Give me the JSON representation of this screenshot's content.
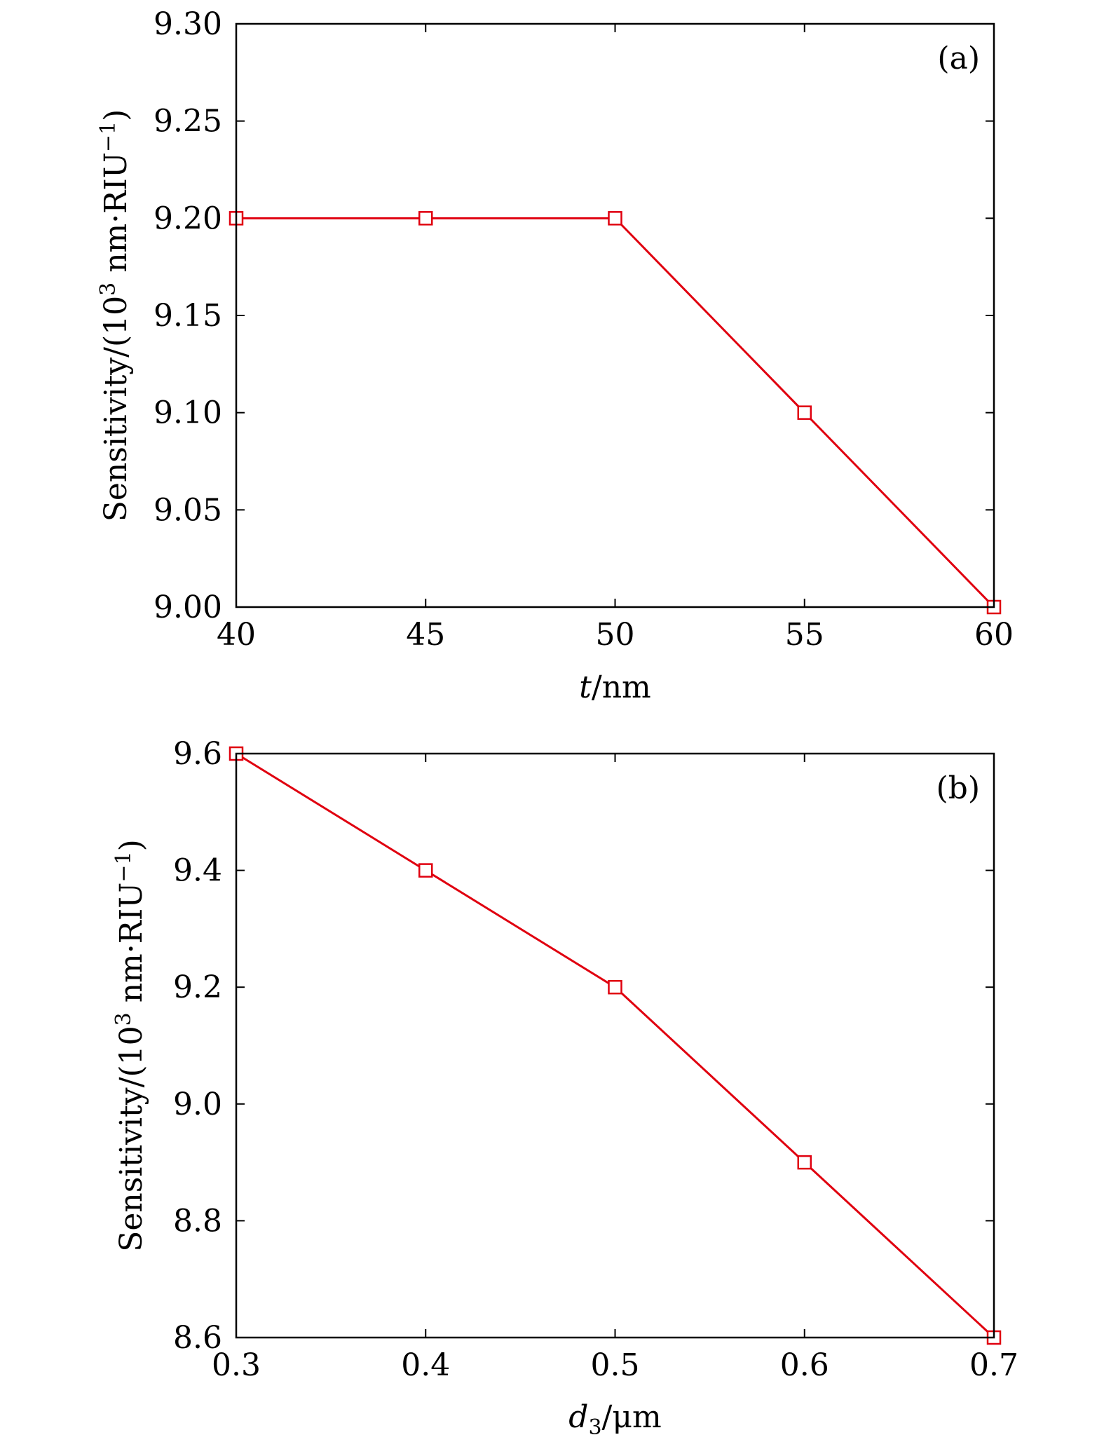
{
  "colors": {
    "series": "#e0000f",
    "axis": "#000000"
  },
  "chart_data": [
    {
      "type": "line",
      "panel_label": "(a)",
      "xlabel": {
        "italic": "t",
        "rest": "/nm"
      },
      "ylabel": {
        "main": "Sensitivity/(10",
        "sup": "3",
        "mid": " nm·RIU",
        "sup2": "−1",
        "end": ")"
      },
      "xlim": [
        40,
        60
      ],
      "ylim": [
        9.0,
        9.3
      ],
      "xticks": [
        40,
        45,
        50,
        55,
        60
      ],
      "xtick_labels": [
        "40",
        "45",
        "50",
        "55",
        "60"
      ],
      "yticks": [
        9.0,
        9.05,
        9.1,
        9.15,
        9.2,
        9.25,
        9.3
      ],
      "ytick_labels": [
        "9.00",
        "9.05",
        "9.10",
        "9.15",
        "9.20",
        "9.25",
        "9.30"
      ],
      "grid": false,
      "marker": "open-square",
      "series": [
        {
          "x": [
            40,
            45,
            50,
            55,
            60
          ],
          "y": [
            9.2,
            9.2,
            9.2,
            9.1,
            9.0
          ]
        }
      ]
    },
    {
      "type": "line",
      "panel_label": "(b)",
      "xlabel": {
        "italic": "d",
        "sub": "3",
        "rest": "/μm"
      },
      "ylabel": {
        "main": "Sensitivity/(10",
        "sup": "3",
        "mid": " nm·RIU",
        "sup2": "−1",
        "end": ")"
      },
      "xlim": [
        0.3,
        0.7
      ],
      "ylim": [
        8.6,
        9.6
      ],
      "xticks": [
        0.3,
        0.4,
        0.5,
        0.6,
        0.7
      ],
      "xtick_labels": [
        "0.3",
        "0.4",
        "0.5",
        "0.6",
        "0.7"
      ],
      "yticks": [
        8.6,
        8.8,
        9.0,
        9.2,
        9.4,
        9.6
      ],
      "ytick_labels": [
        "8.6",
        "8.8",
        "9.0",
        "9.2",
        "9.4",
        "9.6"
      ],
      "grid": false,
      "marker": "open-square",
      "series": [
        {
          "x": [
            0.3,
            0.4,
            0.5,
            0.6,
            0.7
          ],
          "y": [
            9.6,
            9.4,
            9.2,
            8.9,
            8.6
          ]
        }
      ]
    }
  ]
}
